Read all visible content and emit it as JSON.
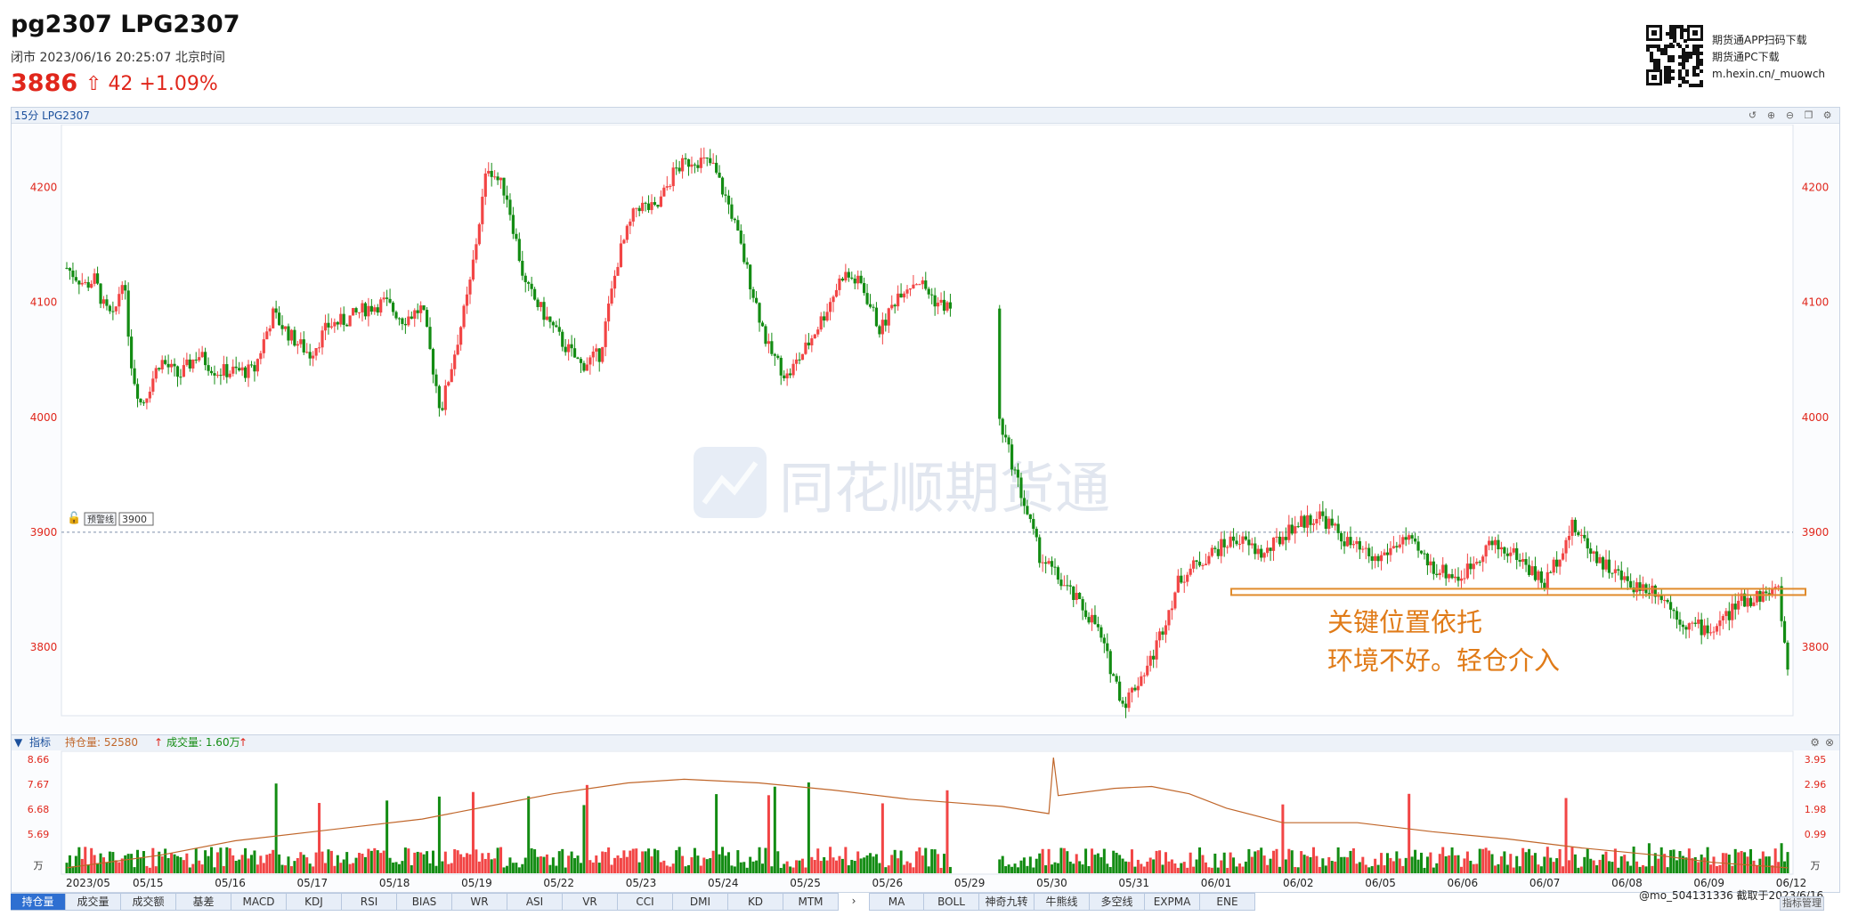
{
  "header": {
    "symbol": "pg2307 LPG2307",
    "status": "闭市  2023/06/16 20:25:07 北京时间",
    "price": "3886",
    "change": "42  +1.09%",
    "promo_1": "期货通APP扫码下载",
    "promo_2": "期货通PC下载",
    "promo_3": "m.hexin.cn/_muowch"
  },
  "main_chart": {
    "title": "15分 LPG2307",
    "watermark": "同花顺期货通",
    "alert_label": "预警线",
    "alert_value": "3900",
    "annotation_line_1": "关键位置依托",
    "annotation_line_2": "环境不好。轻仓介入"
  },
  "indicator_bar": {
    "label": "指标",
    "open_interest": "持仓量: 52580",
    "volume": "成交量: 1.60万"
  },
  "colors": {
    "up": "#f24545",
    "down": "#138c13",
    "oi_line": "#c0662a",
    "annot": "#e07b18"
  },
  "chart_data": [
    {
      "type": "candlestick",
      "title": "15分 LPG2307",
      "y_ticks": [
        4200,
        4100,
        4000,
        3900,
        3800
      ],
      "ylim": [
        3745,
        4250
      ],
      "x_tick_labels": [
        "2023/05",
        "05/15",
        "05/16",
        "05/17",
        "05/18",
        "05/19",
        "05/22",
        "05/23",
        "05/24",
        "05/25",
        "05/26",
        "05/29",
        "05/30",
        "05/31",
        "06/01",
        "06/02",
        "06/05",
        "06/06",
        "06/07",
        "06/08",
        "06/09",
        "06/12"
      ],
      "alert_line": 3900,
      "support_zone": [
        3843,
        3850
      ],
      "close_path": [
        [
          0,
          4130
        ],
        [
          0.02,
          4115
        ],
        [
          0.03,
          4120
        ],
        [
          0.04,
          4095
        ],
        [
          0.05,
          4085
        ],
        [
          0.06,
          4125
        ],
        [
          0.07,
          4040
        ],
        [
          0.08,
          4010
        ],
        [
          0.1,
          4050
        ],
        [
          0.12,
          4035
        ],
        [
          0.14,
          4055
        ],
        [
          0.16,
          4040
        ],
        [
          0.18,
          4040
        ],
        [
          0.2,
          4040
        ],
        [
          0.22,
          4090
        ],
        [
          0.24,
          4070
        ],
        [
          0.26,
          4055
        ],
        [
          0.28,
          4080
        ],
        [
          0.3,
          4085
        ],
        [
          0.32,
          4095
        ],
        [
          0.34,
          4100
        ],
        [
          0.36,
          4085
        ],
        [
          0.38,
          4095
        ],
        [
          0.4,
          4005
        ],
        [
          0.43,
          4110
        ],
        [
          0.45,
          4220
        ],
        [
          0.47,
          4195
        ],
        [
          0.49,
          4115
        ],
        [
          0.51,
          4090
        ],
        [
          0.53,
          4065
        ],
        [
          0.55,
          4045
        ],
        [
          0.57,
          4055
        ],
        [
          0.59,
          4140
        ],
        [
          0.61,
          4185
        ],
        [
          0.63,
          4180
        ],
        [
          0.65,
          4215
        ],
        [
          0.67,
          4225
        ],
        [
          0.69,
          4220
        ],
        [
          0.71,
          4180
        ],
        [
          0.73,
          4120
        ],
        [
          0.75,
          4060
        ],
        [
          0.77,
          4035
        ],
        [
          0.79,
          4060
        ],
        [
          0.81,
          4090
        ],
        [
          0.83,
          4125
        ],
        [
          0.85,
          4115
        ],
        [
          0.87,
          4075
        ],
        [
          0.89,
          4110
        ],
        [
          0.91,
          4120
        ],
        [
          0.93,
          4100
        ],
        [
          0.945,
          4095
        ],
        [
          1.0,
          3990
        ],
        [
          1.04,
          3880
        ],
        [
          1.07,
          3850
        ],
        [
          1.1,
          3820
        ],
        [
          1.13,
          3750
        ],
        [
          1.16,
          3790
        ],
        [
          1.19,
          3860
        ],
        [
          1.22,
          3880
        ],
        [
          1.25,
          3895
        ],
        [
          1.28,
          3880
        ],
        [
          1.31,
          3905
        ],
        [
          1.34,
          3915
        ],
        [
          1.37,
          3890
        ],
        [
          1.4,
          3875
        ],
        [
          1.43,
          3895
        ],
        [
          1.46,
          3870
        ],
        [
          1.49,
          3860
        ],
        [
          1.52,
          3890
        ],
        [
          1.55,
          3880
        ],
        [
          1.58,
          3855
        ],
        [
          1.61,
          3905
        ],
        [
          1.64,
          3875
        ],
        [
          1.67,
          3855
        ],
        [
          1.7,
          3850
        ],
        [
          1.73,
          3820
        ],
        [
          1.76,
          3815
        ],
        [
          1.79,
          3840
        ],
        [
          1.81,
          3845
        ],
        [
          1.83,
          3850
        ],
        [
          1.84,
          3780
        ]
      ],
      "close_path_note": "x is position along time axis (0..1.84), y in price units"
    },
    {
      "type": "bar",
      "title": "持仓量 / 成交量",
      "left_ticks": [
        "8.66",
        "7.67",
        "6.68",
        "5.69"
      ],
      "right_ticks": [
        "3.95",
        "2.96",
        "1.98",
        "0.99"
      ],
      "unit": "万",
      "oi_path": [
        [
          0,
          5.55
        ],
        [
          0.1,
          5.9
        ],
        [
          0.18,
          6.3
        ],
        [
          0.28,
          6.6
        ],
        [
          0.38,
          6.9
        ],
        [
          0.45,
          7.25
        ],
        [
          0.52,
          7.6
        ],
        [
          0.6,
          7.9
        ],
        [
          0.66,
          8.0
        ],
        [
          0.74,
          7.9
        ],
        [
          0.82,
          7.7
        ],
        [
          0.9,
          7.45
        ],
        [
          0.95,
          7.35
        ],
        [
          1.0,
          7.25
        ],
        [
          1.05,
          7.05
        ],
        [
          1.055,
          8.6
        ],
        [
          1.06,
          7.55
        ],
        [
          1.12,
          7.75
        ],
        [
          1.16,
          7.8
        ],
        [
          1.2,
          7.6
        ],
        [
          1.24,
          7.2
        ],
        [
          1.3,
          6.8
        ],
        [
          1.38,
          6.8
        ],
        [
          1.46,
          6.55
        ],
        [
          1.54,
          6.35
        ],
        [
          1.62,
          6.1
        ],
        [
          1.7,
          5.9
        ],
        [
          1.76,
          5.7
        ],
        [
          1.84,
          5.55
        ]
      ]
    }
  ]
}
